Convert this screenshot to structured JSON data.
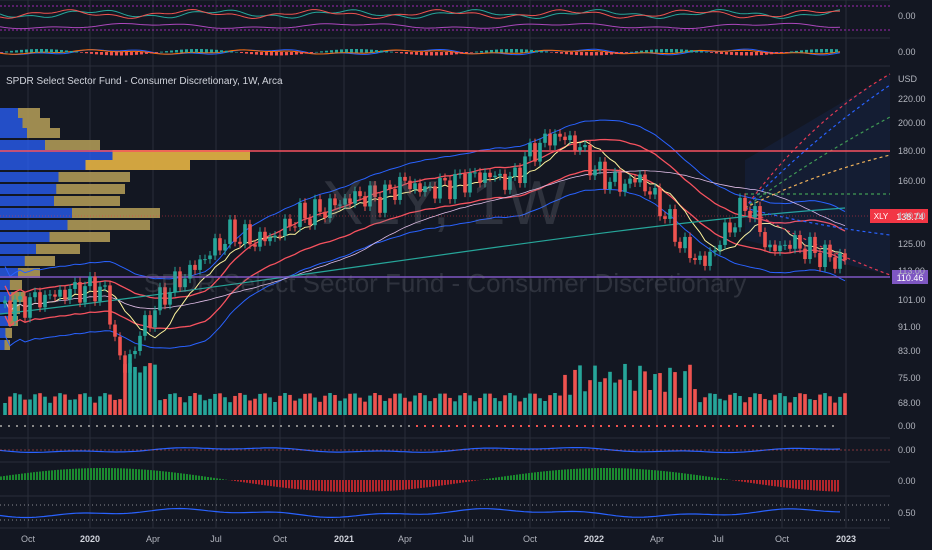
{
  "chart_title": "SPDR Select Sector Fund - Consumer Discretionary, 1W, Arca",
  "watermark": {
    "symbol": "XLY, 1W",
    "name": "SPDR Select Sector Fund - Consumer Discretionary"
  },
  "currency": "USD",
  "price_axis_labels": [
    "220.00",
    "200.00",
    "180.00",
    "160.00",
    "140.00",
    "125.00",
    "113.00",
    "101.00",
    "91.00",
    "83.00",
    "75.00",
    "68.00"
  ],
  "indicator_axis_labels": [
    "0.00",
    "0.00",
    "0.00",
    "0.00",
    "0.00",
    "0.50"
  ],
  "time_axis_labels": [
    {
      "t": "Oct",
      "bold": false
    },
    {
      "t": "2020",
      "bold": true
    },
    {
      "t": "Apr",
      "bold": false
    },
    {
      "t": "Jul",
      "bold": false
    },
    {
      "t": "Oct",
      "bold": false
    },
    {
      "t": "2021",
      "bold": true
    },
    {
      "t": "Apr",
      "bold": false
    },
    {
      "t": "Jul",
      "bold": false
    },
    {
      "t": "Oct",
      "bold": false
    },
    {
      "t": "2022",
      "bold": true
    },
    {
      "t": "Apr",
      "bold": false
    },
    {
      "t": "Jul",
      "bold": false
    },
    {
      "t": "Oct",
      "bold": false
    },
    {
      "t": "2023",
      "bold": true
    }
  ],
  "last_price": {
    "symbol": "XLY",
    "value": "138.74",
    "color": "#f23645"
  },
  "support_level": {
    "value": "110.46",
    "color": "#7e57c2"
  },
  "resistance_level": {
    "value": 180.0,
    "color": "#f7525f"
  },
  "colors": {
    "up": "#26a69a",
    "down": "#ef5350",
    "bg": "#131722",
    "grid": "#2a2e39",
    "bb": "#2962ff",
    "ema_long": "#26a69a"
  },
  "chart_data": {
    "type": "candlestick",
    "title": "SPDR Select Sector Fund - Consumer Discretionary, 1W, Arca",
    "symbol": "XLY",
    "interval": "1W",
    "y_scale": "log",
    "ylim": [
      83,
      240
    ],
    "x_start": "2019-09-30",
    "x_end": "2022-12-31",
    "approx_weekly_closes": [
      {
        "x": "2019-10",
        "y": 119
      },
      {
        "x": "2019-11",
        "y": 122
      },
      {
        "x": "2019-12",
        "y": 124
      },
      {
        "x": "2020-01",
        "y": 126
      },
      {
        "x": "2020-02",
        "y": 127
      },
      {
        "x": "2020-03",
        "y": 95
      },
      {
        "x": "2020-04",
        "y": 112
      },
      {
        "x": "2020-05",
        "y": 125
      },
      {
        "x": "2020-06",
        "y": 133
      },
      {
        "x": "2020-07",
        "y": 142
      },
      {
        "x": "2020-08",
        "y": 152
      },
      {
        "x": "2020-09",
        "y": 148
      },
      {
        "x": "2020-10",
        "y": 150
      },
      {
        "x": "2020-11",
        "y": 160
      },
      {
        "x": "2020-12",
        "y": 163
      },
      {
        "x": "2021-01",
        "y": 168
      },
      {
        "x": "2021-02",
        "y": 172
      },
      {
        "x": "2021-03",
        "y": 170
      },
      {
        "x": "2021-04",
        "y": 180
      },
      {
        "x": "2021-05",
        "y": 175
      },
      {
        "x": "2021-06",
        "y": 178
      },
      {
        "x": "2021-07",
        "y": 182
      },
      {
        "x": "2021-08",
        "y": 184
      },
      {
        "x": "2021-09",
        "y": 180
      },
      {
        "x": "2021-10",
        "y": 200
      },
      {
        "x": "2021-11",
        "y": 210
      },
      {
        "x": "2021-12",
        "y": 205
      },
      {
        "x": "2022-01",
        "y": 185
      },
      {
        "x": "2022-02",
        "y": 178
      },
      {
        "x": "2022-03",
        "y": 182
      },
      {
        "x": "2022-04",
        "y": 165
      },
      {
        "x": "2022-05",
        "y": 145
      },
      {
        "x": "2022-06",
        "y": 137
      },
      {
        "x": "2022-07",
        "y": 152
      },
      {
        "x": "2022-08",
        "y": 168
      },
      {
        "x": "2022-09",
        "y": 143
      },
      {
        "x": "2022-10",
        "y": 147
      },
      {
        "x": "2022-11",
        "y": 143
      },
      {
        "x": "2022-12",
        "y": 139
      }
    ],
    "horizontal_levels": [
      180,
      110.46
    ],
    "last_value": 138.74
  }
}
